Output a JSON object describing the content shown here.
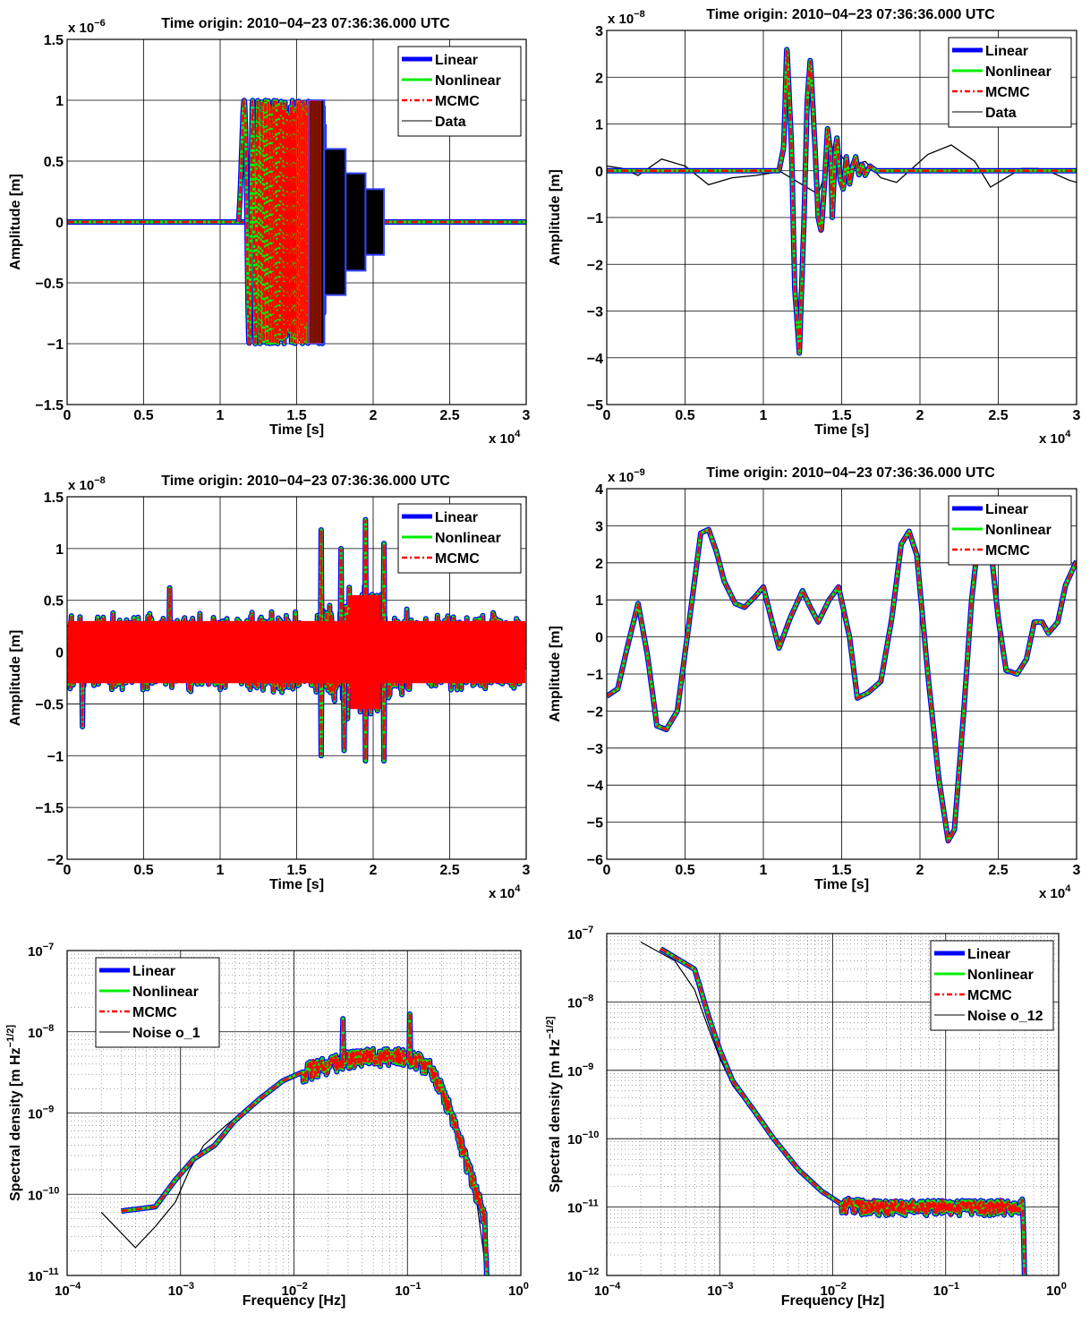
{
  "chart_data": [
    {
      "type": "line",
      "title": "Time origin: 2010−04−23 07:36:36.000 UTC",
      "xlabel": "Time  [s]",
      "ylabel": "Amplitude  [m]",
      "x_multiplier": "x 10^4",
      "y_multiplier": "x 10^-6",
      "xlim": [
        0,
        3
      ],
      "ylim": [
        -1.5,
        1.5
      ],
      "xticks": [
        "0",
        "0.5",
        "1",
        "1.5",
        "2",
        "2.5",
        "3"
      ],
      "yticks": [
        "−1.5",
        "−1",
        "−0.5",
        "0",
        "0.5",
        "1",
        "1.5"
      ],
      "grid": true,
      "legend_position": "top-right",
      "series": [
        {
          "name": "Linear",
          "color": "#0000ff",
          "style": "solid-thick"
        },
        {
          "name": "Nonlinear",
          "color": "#00ee00",
          "style": "solid"
        },
        {
          "name": "MCMC",
          "color": "#ff0000",
          "style": "dash-dot"
        },
        {
          "name": "Data",
          "color": "#000000",
          "style": "solid-thin"
        }
      ],
      "signal": {
        "kind": "stepped-chirp",
        "segments": [
          {
            "x0": 0,
            "x1": 1.12,
            "amp": 0
          },
          {
            "x0": 1.12,
            "x1": 1.68,
            "amp": 1.0
          },
          {
            "x0": 1.68,
            "x1": 1.82,
            "amp": 0.6
          },
          {
            "x0": 1.82,
            "x1": 1.95,
            "amp": 0.4
          },
          {
            "x0": 1.95,
            "x1": 2.07,
            "amp": 0.27
          },
          {
            "x0": 2.07,
            "x1": 3.0,
            "amp": 0
          }
        ]
      }
    },
    {
      "type": "line",
      "title": "Time origin: 2010−04−23 07:36:36.000 UTC",
      "xlabel": "Time  [s]",
      "ylabel": "Amplitude  [m]",
      "x_multiplier": "x 10^4",
      "y_multiplier": "x 10^-8",
      "xlim": [
        0,
        3
      ],
      "ylim": [
        -5,
        3
      ],
      "xticks": [
        "0",
        "0.5",
        "1",
        "1.5",
        "2",
        "2.5",
        "3"
      ],
      "yticks": [
        "−5",
        "−4",
        "−3",
        "−2",
        "−1",
        "0",
        "1",
        "2",
        "3"
      ],
      "grid": true,
      "legend_position": "top-right",
      "series": [
        {
          "name": "Linear",
          "color": "#0000ff"
        },
        {
          "name": "Nonlinear",
          "color": "#00ee00"
        },
        {
          "name": "MCMC",
          "color": "#ff0000"
        },
        {
          "name": "Data",
          "color": "#000000"
        }
      ],
      "model_points": [
        [
          0,
          0
        ],
        [
          1.1,
          0
        ],
        [
          1.13,
          0.5
        ],
        [
          1.15,
          2.7
        ],
        [
          1.18,
          0.5
        ],
        [
          1.2,
          -2.5
        ],
        [
          1.23,
          -3.9
        ],
        [
          1.26,
          -1
        ],
        [
          1.28,
          1.5
        ],
        [
          1.3,
          2.4
        ],
        [
          1.33,
          0.5
        ],
        [
          1.35,
          -1
        ],
        [
          1.37,
          -1.3
        ],
        [
          1.39,
          -0.3
        ],
        [
          1.41,
          0.9
        ],
        [
          1.43,
          0.4
        ],
        [
          1.44,
          -1.0
        ],
        [
          1.46,
          0.5
        ],
        [
          1.47,
          0.7
        ],
        [
          1.49,
          -0.2
        ],
        [
          1.51,
          -0.4
        ],
        [
          1.53,
          0.3
        ],
        [
          1.55,
          -0.3
        ],
        [
          1.57,
          0.1
        ],
        [
          1.59,
          0.3
        ],
        [
          1.61,
          -0.1
        ],
        [
          1.63,
          0.15
        ],
        [
          1.65,
          -0.1
        ],
        [
          1.68,
          0.1
        ],
        [
          1.72,
          0
        ],
        [
          3,
          0
        ]
      ],
      "data_points": [
        [
          0,
          0.1
        ],
        [
          0.1,
          0.05
        ],
        [
          0.2,
          -0.1
        ],
        [
          0.35,
          0.25
        ],
        [
          0.5,
          0.1
        ],
        [
          0.65,
          -0.3
        ],
        [
          0.8,
          -0.15
        ],
        [
          0.95,
          -0.1
        ],
        [
          1.05,
          -0.05
        ],
        [
          1.1,
          0
        ],
        [
          1.35,
          -0.5
        ],
        [
          1.45,
          0.5
        ],
        [
          1.55,
          0.1
        ],
        [
          1.65,
          0.2
        ],
        [
          1.75,
          -0.15
        ],
        [
          1.85,
          -0.25
        ],
        [
          1.95,
          0.05
        ],
        [
          2.05,
          0.35
        ],
        [
          2.2,
          0.55
        ],
        [
          2.35,
          0.2
        ],
        [
          2.45,
          -0.35
        ],
        [
          2.55,
          -0.15
        ],
        [
          2.65,
          0.05
        ],
        [
          2.75,
          0.05
        ],
        [
          2.85,
          -0.05
        ],
        [
          2.95,
          -0.2
        ],
        [
          3,
          -0.25
        ]
      ]
    },
    {
      "type": "line",
      "title": "Time origin: 2010−04−23 07:36:36.000 UTC",
      "xlabel": "Time  [s]",
      "ylabel": "Amplitude  [m]",
      "x_multiplier": "x 10^4",
      "y_multiplier": "x 10^-8",
      "xlim": [
        0,
        3
      ],
      "ylim": [
        -2,
        1.5
      ],
      "xticks": [
        "0",
        "0.5",
        "1",
        "1.5",
        "2",
        "2.5",
        "3"
      ],
      "yticks": [
        "−2",
        "−1.5",
        "−1",
        "−0.5",
        "0",
        "0.5",
        "1",
        "1.5"
      ],
      "grid": true,
      "legend_position": "top-right",
      "series": [
        {
          "name": "Linear",
          "color": "#0000ff"
        },
        {
          "name": "Nonlinear",
          "color": "#00ee00"
        },
        {
          "name": "MCMC",
          "color": "#ff0000"
        }
      ],
      "noise": {
        "base_amplitude": 0.4,
        "burst_center": 1.95,
        "burst_amplitude": 0.7,
        "spikes": [
          [
            1.66,
            1.18
          ],
          [
            1.66,
            -1.0
          ],
          [
            1.81,
            -0.95
          ],
          [
            1.95,
            1.28
          ],
          [
            1.95,
            -1.05
          ],
          [
            2.07,
            -1.05
          ],
          [
            2.07,
            1.05
          ],
          [
            1.79,
            1.0
          ],
          [
            0.67,
            0.62
          ],
          [
            0.1,
            -0.72
          ]
        ]
      }
    },
    {
      "type": "line",
      "title": "Time origin: 2010−04−23 07:36:36.000 UTC",
      "xlabel": "Time  [s]",
      "ylabel": "Amplitude  [m]",
      "x_multiplier": "x 10^4",
      "y_multiplier": "x 10^-9",
      "xlim": [
        0,
        3
      ],
      "ylim": [
        -6,
        4
      ],
      "xticks": [
        "0",
        "0.5",
        "1",
        "1.5",
        "2",
        "2.5",
        "3"
      ],
      "yticks": [
        "−6",
        "−5",
        "−4",
        "−3",
        "−2",
        "−1",
        "0",
        "1",
        "2",
        "3",
        "4"
      ],
      "grid": true,
      "legend_position": "top-right",
      "series": [
        {
          "name": "Linear",
          "color": "#0000ff"
        },
        {
          "name": "Nonlinear",
          "color": "#00ee00"
        },
        {
          "name": "MCMC",
          "color": "#ff0000"
        }
      ],
      "points": [
        [
          0,
          -1.6
        ],
        [
          0.07,
          -1.4
        ],
        [
          0.13,
          -0.3
        ],
        [
          0.2,
          0.9
        ],
        [
          0.26,
          -0.5
        ],
        [
          0.32,
          -2.4
        ],
        [
          0.38,
          -2.5
        ],
        [
          0.45,
          -2.0
        ],
        [
          0.52,
          0.2
        ],
        [
          0.6,
          2.8
        ],
        [
          0.65,
          2.9
        ],
        [
          0.7,
          2.3
        ],
        [
          0.75,
          1.5
        ],
        [
          0.82,
          0.9
        ],
        [
          0.88,
          0.8
        ],
        [
          0.95,
          1.1
        ],
        [
          1.0,
          1.35
        ],
        [
          1.05,
          0.5
        ],
        [
          1.1,
          -0.3
        ],
        [
          1.17,
          0.5
        ],
        [
          1.25,
          1.25
        ],
        [
          1.3,
          0.8
        ],
        [
          1.35,
          0.4
        ],
        [
          1.42,
          1.0
        ],
        [
          1.48,
          1.35
        ],
        [
          1.55,
          0.0
        ],
        [
          1.6,
          -1.65
        ],
        [
          1.67,
          -1.5
        ],
        [
          1.75,
          -1.2
        ],
        [
          1.82,
          0.5
        ],
        [
          1.88,
          2.5
        ],
        [
          1.93,
          2.85
        ],
        [
          1.98,
          2.2
        ],
        [
          2.05,
          -1.0
        ],
        [
          2.12,
          -3.8
        ],
        [
          2.18,
          -5.5
        ],
        [
          2.22,
          -5.2
        ],
        [
          2.28,
          -2.0
        ],
        [
          2.33,
          1.0
        ],
        [
          2.38,
          2.9
        ],
        [
          2.45,
          2.5
        ],
        [
          2.5,
          0.5
        ],
        [
          2.55,
          -0.9
        ],
        [
          2.62,
          -1.0
        ],
        [
          2.68,
          -0.6
        ],
        [
          2.73,
          0.4
        ],
        [
          2.78,
          0.4
        ],
        [
          2.82,
          0.1
        ],
        [
          2.88,
          0.4
        ],
        [
          2.93,
          1.4
        ],
        [
          3,
          2.05
        ]
      ]
    },
    {
      "type": "line",
      "xlabel": "Frequency  [Hz]",
      "ylabel": "Spectral density  [m Hz^-1/2]",
      "xscale": "log",
      "yscale": "log",
      "xlim": [
        0.0001,
        1
      ],
      "ylim": [
        1e-11,
        1e-07
      ],
      "xticks": [
        "10^-4",
        "10^-3",
        "10^-2",
        "10^-1",
        "10^0"
      ],
      "yticks": [
        "10^-11",
        "10^-10",
        "10^-9",
        "10^-8",
        "10^-7"
      ],
      "grid": true,
      "legend_position": "top-left",
      "series": [
        {
          "name": "Linear",
          "color": "#0000ff"
        },
        {
          "name": "Nonlinear",
          "color": "#00ee00"
        },
        {
          "name": "MCMC",
          "color": "#ff0000"
        },
        {
          "name": "Noise o_1",
          "color": "#000000"
        }
      ],
      "model_points": [
        [
          0.0003,
          6.2e-11
        ],
        [
          0.0006,
          7e-11
        ],
        [
          0.0009,
          1.5e-10
        ],
        [
          0.0013,
          2.7e-10
        ],
        [
          0.002,
          4e-10
        ],
        [
          0.003,
          8e-10
        ],
        [
          0.005,
          1.5e-09
        ],
        [
          0.008,
          2.5e-09
        ],
        [
          0.012,
          3.2e-09
        ],
        [
          0.02,
          4e-09
        ],
        [
          0.03,
          4.6e-09
        ],
        [
          0.05,
          5e-09
        ],
        [
          0.08,
          5e-09
        ],
        [
          0.12,
          4.6e-09
        ],
        [
          0.16,
          3.5e-09
        ],
        [
          0.2,
          2e-09
        ],
        [
          0.25,
          9e-10
        ],
        [
          0.3,
          4e-10
        ],
        [
          0.35,
          2e-10
        ],
        [
          0.4,
          1.1e-10
        ],
        [
          0.45,
          7e-11
        ],
        [
          0.48,
          5e-11
        ],
        [
          0.5,
          1e-11
        ]
      ],
      "noise_points": [
        [
          0.0002,
          6e-11
        ],
        [
          0.0004,
          2.2e-11
        ],
        [
          0.0006,
          4e-11
        ],
        [
          0.0009,
          8e-11
        ],
        [
          0.0012,
          2e-10
        ],
        [
          0.0016,
          4e-10
        ],
        [
          0.0025,
          7e-10
        ],
        [
          0.004,
          1.2e-09
        ],
        [
          0.007,
          2.2e-09
        ],
        [
          0.012,
          3.2e-09
        ],
        [
          0.02,
          4.2e-09
        ],
        [
          0.04,
          5e-09
        ],
        [
          0.08,
          5e-09
        ],
        [
          0.12,
          4.3e-09
        ],
        [
          0.16,
          3.2e-09
        ],
        [
          0.2,
          1.8e-09
        ],
        [
          0.25,
          8e-10
        ],
        [
          0.3,
          3.5e-10
        ],
        [
          0.4,
          1e-10
        ],
        [
          0.5,
          1e-11
        ]
      ],
      "peaks": [
        [
          0.027,
          1.45e-08
        ],
        [
          0.105,
          1.65e-08
        ]
      ]
    },
    {
      "type": "line",
      "xlabel": "Frequency  [Hz]",
      "ylabel": "Spectral density  [m Hz^-1/2]",
      "xscale": "log",
      "yscale": "log",
      "xlim": [
        0.0001,
        1
      ],
      "ylim": [
        1e-12,
        1e-07
      ],
      "xticks": [
        "10^-4",
        "10^-3",
        "10^-2",
        "10^-1",
        "10^0"
      ],
      "yticks": [
        "10^-12",
        "10^-11",
        "10^-10",
        "10^-9",
        "10^-8",
        "10^-7"
      ],
      "grid": true,
      "legend_position": "top-right",
      "series": [
        {
          "name": "Linear",
          "color": "#0000ff"
        },
        {
          "name": "Nonlinear",
          "color": "#00ee00"
        },
        {
          "name": "MCMC",
          "color": "#ff0000"
        },
        {
          "name": "Noise o_12",
          "color": "#000000"
        }
      ],
      "model_points": [
        [
          0.0003,
          6e-08
        ],
        [
          0.0006,
          3e-08
        ],
        [
          0.0008,
          6e-09
        ],
        [
          0.001,
          2e-09
        ],
        [
          0.0013,
          7e-10
        ],
        [
          0.002,
          2.6e-10
        ],
        [
          0.003,
          1e-10
        ],
        [
          0.005,
          3.5e-11
        ],
        [
          0.008,
          1.7e-11
        ],
        [
          0.012,
          1.1e-11
        ],
        [
          0.02,
          1e-11
        ],
        [
          0.05,
          1e-11
        ],
        [
          0.1,
          1e-11
        ],
        [
          0.3,
          1e-11
        ],
        [
          0.48,
          1.05e-11
        ],
        [
          0.5,
          1e-12
        ]
      ],
      "noise_points": [
        [
          0.0002,
          7.5e-08
        ],
        [
          0.0004,
          4e-08
        ],
        [
          0.0006,
          1.5e-08
        ],
        [
          0.0008,
          4e-09
        ],
        [
          0.001,
          1.5e-09
        ],
        [
          0.0013,
          6e-10
        ],
        [
          0.002,
          2.4e-10
        ],
        [
          0.003,
          1e-10
        ],
        [
          0.005,
          3.5e-11
        ],
        [
          0.008,
          1.7e-11
        ],
        [
          0.012,
          1.1e-11
        ],
        [
          0.02,
          1e-11
        ],
        [
          0.1,
          1e-11
        ],
        [
          0.3,
          1e-11
        ],
        [
          0.48,
          1e-11
        ],
        [
          0.5,
          1e-12
        ]
      ]
    }
  ]
}
